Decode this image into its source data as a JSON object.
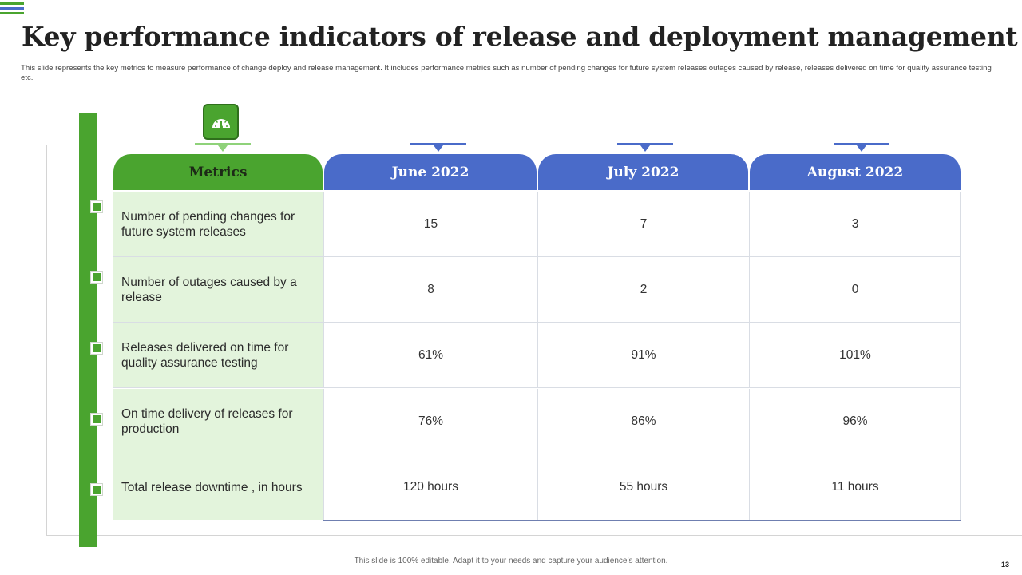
{
  "slide": {
    "title": "Key performance indicators of release and deployment management",
    "subtitle": "This slide represents the key metrics to measure performance of change deploy and release management.  It includes performance metrics such as number of pending changes for future system releases outages caused by release, releases delivered on time for quality assurance testing etc.",
    "footer": "This slide is 100% editable.  Adapt it to your needs and capture your audience’s attention.",
    "page_number": "13"
  },
  "colors": {
    "green": "#4aa42f",
    "blue": "#4a6bc9",
    "light_green": "#e3f4dc"
  },
  "icon": {
    "name": "speedometer-icon"
  },
  "table": {
    "headers": [
      "Metrics",
      "June 2022",
      "July 2022",
      "August 2022"
    ],
    "rows": [
      {
        "metric": "Number of pending changes for future system releases",
        "values": [
          "15",
          "7",
          "3"
        ]
      },
      {
        "metric": "Number of outages caused by a release",
        "values": [
          "8",
          "2",
          "0"
        ]
      },
      {
        "metric": "Releases delivered on time for quality assurance testing",
        "values": [
          "61%",
          "91%",
          "101%"
        ]
      },
      {
        "metric": "On time delivery  of releases for production",
        "values": [
          "76%",
          "86%",
          "96%"
        ]
      },
      {
        "metric": "Total release downtime , in hours",
        "values": [
          "120 hours",
          "55 hours",
          "11 hours"
        ]
      }
    ]
  }
}
